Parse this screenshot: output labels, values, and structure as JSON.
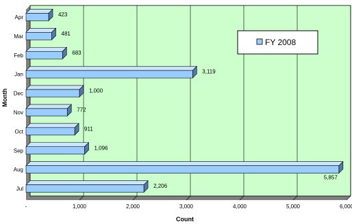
{
  "chart_data": {
    "type": "bar",
    "orientation": "horizontal",
    "categories": [
      "Jul",
      "Aug",
      "Sep",
      "Oct",
      "Nov",
      "Dec",
      "Jan",
      "Feb",
      "Mar",
      "Apr"
    ],
    "series": [
      {
        "name": "FY 2008",
        "values": [
          2206,
          5857,
          1096,
          911,
          772,
          1000,
          3119,
          683,
          481,
          423
        ],
        "value_labels": [
          "2,206",
          "5,857",
          "1,096",
          "911",
          "772",
          "1,000",
          "3,119",
          "683",
          "481",
          "423"
        ]
      }
    ],
    "xlabel": "Count",
    "ylabel": "Month",
    "xlim": [
      0,
      6000
    ],
    "x_ticks": [
      0,
      1000,
      2000,
      3000,
      4000,
      5000,
      6000
    ],
    "x_tick_labels": [
      "-",
      "1,000",
      "2,000",
      "3,000",
      "4,000",
      "5,000",
      "6,000"
    ],
    "grid": true,
    "legend_position": "top-right",
    "colors": {
      "plot_background": "#CCFFCC",
      "bar_fill": "#99CCFF",
      "bar_top": "#CCE6FF",
      "bar_side": "#5577AA",
      "gridline": "#000000",
      "wall": "#808080"
    }
  }
}
